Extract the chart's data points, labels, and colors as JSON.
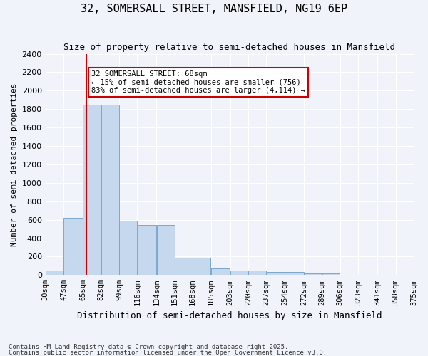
{
  "title": "32, SOMERSALL STREET, MANSFIELD, NG19 6EP",
  "subtitle": "Size of property relative to semi-detached houses in Mansfield",
  "xlabel": "Distribution of semi-detached houses by size in Mansfield",
  "ylabel": "Number of semi-detached properties",
  "property_size": 68,
  "property_label": "32 SOMERSALL STREET: 68sqm",
  "pct_smaller": 15,
  "pct_larger": 83,
  "n_smaller": 756,
  "n_larger": 4114,
  "bar_color": "#c5d8ed",
  "bar_edge_color": "#7aa8cc",
  "vline_color": "#cc0000",
  "annotation_box_color": "#cc0000",
  "background_color": "#f0f4fa",
  "grid_color": "#ffffff",
  "bins": [
    30,
    47,
    65,
    82,
    99,
    116,
    134,
    151,
    168,
    185,
    203,
    220,
    237,
    254,
    272,
    289,
    306,
    323,
    341,
    358,
    375
  ],
  "bin_labels": [
    "30sqm",
    "47sqm",
    "65sqm",
    "82sqm",
    "99sqm",
    "116sqm",
    "134sqm",
    "151sqm",
    "168sqm",
    "185sqm",
    "203sqm",
    "220sqm",
    "237sqm",
    "254sqm",
    "272sqm",
    "289sqm",
    "306sqm",
    "323sqm",
    "341sqm",
    "358sqm",
    "375sqm"
  ],
  "bar_heights": [
    50,
    620,
    1850,
    1850,
    590,
    540,
    540,
    190,
    190,
    75,
    50,
    50,
    35,
    35,
    20,
    15,
    5,
    5,
    2,
    2,
    0
  ],
  "ylim": [
    0,
    2400
  ],
  "yticks": [
    0,
    200,
    400,
    600,
    800,
    1000,
    1200,
    1400,
    1600,
    1800,
    2000,
    2200,
    2400
  ],
  "footnote1": "Contains HM Land Registry data © Crown copyright and database right 2025.",
  "footnote2": "Contains public sector information licensed under the Open Government Licence v3.0."
}
